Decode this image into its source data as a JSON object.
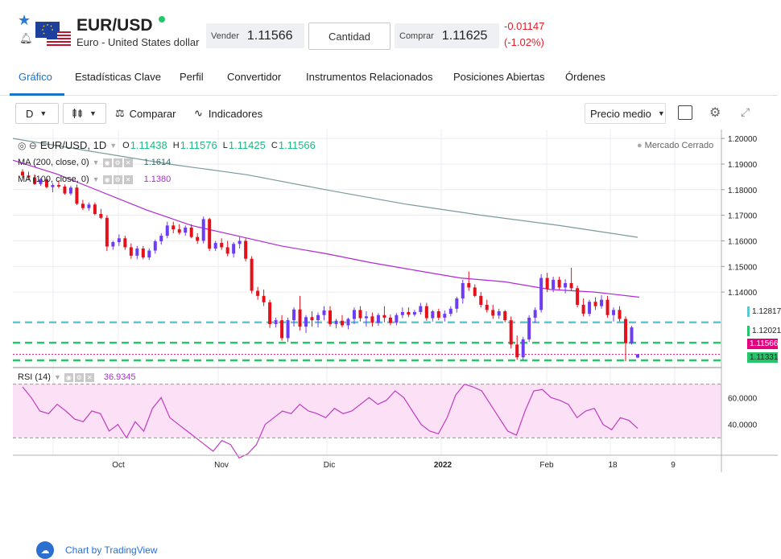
{
  "header": {
    "symbol": "EUR/USD",
    "description": "Euro - United States dollar",
    "sell_label": "Vender",
    "sell_price": "1.11566",
    "quantity_label": "Cantidad",
    "buy_label": "Comprar",
    "buy_price": "1.11625",
    "change_abs": "-0.01147",
    "change_pct": "(-1.02%)",
    "status_color": "#25c56c"
  },
  "tabs": [
    {
      "label": "Gráfico",
      "active": true
    },
    {
      "label": "Estadísticas Clave"
    },
    {
      "label": "Perfil"
    },
    {
      "label": "Convertidor"
    },
    {
      "label": "Instrumentos Relacionados"
    },
    {
      "label": "Posiciones Abiertas"
    },
    {
      "label": "Órdenes"
    }
  ],
  "toolbar": {
    "interval": "D",
    "compare_label": "Comparar",
    "indicators_label": "Indicadores",
    "price_mode": "Precio medio"
  },
  "chart": {
    "legend_symbol": "EUR/USD, 1D",
    "o_label": "O",
    "o": "1.11438",
    "h_label": "H",
    "h": "1.11576",
    "l_label": "L",
    "l": "1.11425",
    "c_label": "C",
    "c": "1.11566",
    "ma200_label": "MA (200, close, 0)",
    "ma200_value": "1.1614",
    "ma100_label": "MA (100, close, 0)",
    "ma100_value": "1.1380",
    "market_status": "Mercado Cerrado",
    "rsi_label": "RSI (14)",
    "rsi_value": "36.9345",
    "watermark": "Chart by TradingView",
    "price_badges": [
      {
        "value": "1.12817",
        "bg": "#ffffff",
        "fg": "#222222",
        "border": "#5bc8d6"
      },
      {
        "value": "1.12021",
        "bg": "#ffffff",
        "fg": "#222222",
        "border": "#25c56c"
      },
      {
        "value": "1.11566",
        "bg": "#e5007e",
        "fg": "#ffffff",
        "border": "#e5007e"
      },
      {
        "value": "1.11331",
        "bg": "#25c56c",
        "fg": "#222222",
        "border": "#25c56c"
      }
    ],
    "colors": {
      "up": "#6d3df5",
      "down": "#e5101a",
      "ma200": "#7b9b9b",
      "ma100": "#b028d6",
      "rsi": "#c03cc0",
      "rsi_band": "#f9dcf4",
      "cyan": "#5bc8d6",
      "green": "#25c56c"
    }
  },
  "chart_data": {
    "type": "candlestick",
    "ylim": [
      1.1105,
      1.2035
    ],
    "y_ticks": [
      "1.20000",
      "1.19000",
      "1.18000",
      "1.17000",
      "1.16000",
      "1.15000",
      "1.14000"
    ],
    "x_ticks": [
      "Oct",
      "Nov",
      "Dic",
      "2022",
      "Feb",
      "18",
      "9"
    ],
    "ohlc": [
      [
        1.187,
        1.188,
        1.1845,
        1.1855
      ],
      [
        1.1855,
        1.187,
        1.1838,
        1.1848
      ],
      [
        1.1848,
        1.186,
        1.1818,
        1.1822
      ],
      [
        1.1822,
        1.1845,
        1.1815,
        1.184
      ],
      [
        1.184,
        1.185,
        1.1805,
        1.181
      ],
      [
        1.181,
        1.1825,
        1.179,
        1.1818
      ],
      [
        1.1818,
        1.1835,
        1.1805,
        1.1812
      ],
      [
        1.1812,
        1.182,
        1.178,
        1.1785
      ],
      [
        1.1785,
        1.1815,
        1.1778,
        1.1808
      ],
      [
        1.1808,
        1.182,
        1.174,
        1.1745
      ],
      [
        1.1745,
        1.176,
        1.172,
        1.1728
      ],
      [
        1.1728,
        1.175,
        1.1718,
        1.1742
      ],
      [
        1.1742,
        1.175,
        1.17,
        1.1705
      ],
      [
        1.1705,
        1.1725,
        1.1685,
        1.169
      ],
      [
        1.169,
        1.17,
        1.156,
        1.1578
      ],
      [
        1.1578,
        1.16,
        1.1565,
        1.1595
      ],
      [
        1.1595,
        1.1625,
        1.158,
        1.161
      ],
      [
        1.161,
        1.162,
        1.1565,
        1.1575
      ],
      [
        1.1575,
        1.159,
        1.153,
        1.1542
      ],
      [
        1.1542,
        1.158,
        1.1528,
        1.157
      ],
      [
        1.157,
        1.158,
        1.1528,
        1.1535
      ],
      [
        1.1535,
        1.157,
        1.1525,
        1.1562
      ],
      [
        1.1562,
        1.1605,
        1.155,
        1.1598
      ],
      [
        1.1598,
        1.163,
        1.1585,
        1.162
      ],
      [
        1.162,
        1.1675,
        1.161,
        1.166
      ],
      [
        1.166,
        1.1675,
        1.163,
        1.1645
      ],
      [
        1.1645,
        1.1665,
        1.1625,
        1.1632
      ],
      [
        1.1632,
        1.166,
        1.162,
        1.1652
      ],
      [
        1.1652,
        1.1665,
        1.161,
        1.1615
      ],
      [
        1.1615,
        1.163,
        1.1588,
        1.16
      ],
      [
        1.16,
        1.1695,
        1.159,
        1.1685
      ],
      [
        1.1685,
        1.169,
        1.156,
        1.157
      ],
      [
        1.157,
        1.16,
        1.156,
        1.1592
      ],
      [
        1.1592,
        1.161,
        1.1565,
        1.1575
      ],
      [
        1.1575,
        1.16,
        1.154,
        1.155
      ],
      [
        1.155,
        1.1595,
        1.1535,
        1.1588
      ],
      [
        1.1588,
        1.1615,
        1.157,
        1.16
      ],
      [
        1.16,
        1.161,
        1.152,
        1.153
      ],
      [
        1.153,
        1.154,
        1.1395,
        1.1405
      ],
      [
        1.1405,
        1.142,
        1.137,
        1.1385
      ],
      [
        1.1385,
        1.141,
        1.1345,
        1.136
      ],
      [
        1.136,
        1.137,
        1.126,
        1.1275
      ],
      [
        1.1275,
        1.13,
        1.1262,
        1.129
      ],
      [
        1.129,
        1.131,
        1.121,
        1.122
      ],
      [
        1.122,
        1.13,
        1.1205,
        1.129
      ],
      [
        1.129,
        1.134,
        1.1265,
        1.1332
      ],
      [
        1.1332,
        1.1385,
        1.125,
        1.1265
      ],
      [
        1.1265,
        1.131,
        1.124,
        1.1302
      ],
      [
        1.1302,
        1.1325,
        1.1265,
        1.129
      ],
      [
        1.129,
        1.132,
        1.1262,
        1.131
      ],
      [
        1.131,
        1.1345,
        1.129,
        1.1328
      ],
      [
        1.1328,
        1.1345,
        1.1265,
        1.1275
      ],
      [
        1.1275,
        1.1295,
        1.1258,
        1.1288
      ],
      [
        1.1288,
        1.131,
        1.1262,
        1.127
      ],
      [
        1.127,
        1.13,
        1.1255,
        1.1295
      ],
      [
        1.1295,
        1.134,
        1.1275,
        1.133
      ],
      [
        1.133,
        1.1345,
        1.1285,
        1.1298
      ],
      [
        1.1298,
        1.1325,
        1.1265,
        1.1305
      ],
      [
        1.1305,
        1.132,
        1.1265,
        1.128
      ],
      [
        1.128,
        1.1318,
        1.1268,
        1.131
      ],
      [
        1.131,
        1.1345,
        1.1282,
        1.13
      ],
      [
        1.13,
        1.1312,
        1.127,
        1.128
      ],
      [
        1.128,
        1.1318,
        1.127,
        1.131
      ],
      [
        1.131,
        1.134,
        1.1298,
        1.1322
      ],
      [
        1.1322,
        1.134,
        1.1302,
        1.1312
      ],
      [
        1.1312,
        1.133,
        1.1305,
        1.1322
      ],
      [
        1.1322,
        1.1358,
        1.1312,
        1.1345
      ],
      [
        1.1345,
        1.1358,
        1.1288,
        1.1298
      ],
      [
        1.1298,
        1.133,
        1.1285,
        1.1325
      ],
      [
        1.1325,
        1.1335,
        1.129,
        1.13
      ],
      [
        1.13,
        1.1328,
        1.1285,
        1.1315
      ],
      [
        1.1315,
        1.1345,
        1.1305,
        1.1335
      ],
      [
        1.1335,
        1.1382,
        1.132,
        1.1375
      ],
      [
        1.1375,
        1.1448,
        1.1355,
        1.1435
      ],
      [
        1.1435,
        1.148,
        1.1405,
        1.1418
      ],
      [
        1.1418,
        1.143,
        1.138,
        1.1385
      ],
      [
        1.1385,
        1.14,
        1.134,
        1.135
      ],
      [
        1.135,
        1.137,
        1.132,
        1.133
      ],
      [
        1.133,
        1.135,
        1.1295,
        1.1308
      ],
      [
        1.1308,
        1.1335,
        1.1295,
        1.1325
      ],
      [
        1.1325,
        1.133,
        1.1282,
        1.129
      ],
      [
        1.129,
        1.1305,
        1.118,
        1.1195
      ],
      [
        1.1195,
        1.123,
        1.1135,
        1.1145
      ],
      [
        1.1145,
        1.1225,
        1.1135,
        1.1215
      ],
      [
        1.1215,
        1.131,
        1.1205,
        1.13
      ],
      [
        1.13,
        1.134,
        1.128,
        1.133
      ],
      [
        1.133,
        1.147,
        1.132,
        1.1455
      ],
      [
        1.1455,
        1.1475,
        1.14,
        1.1412
      ],
      [
        1.1412,
        1.146,
        1.14,
        1.1448
      ],
      [
        1.1448,
        1.146,
        1.141,
        1.1418
      ],
      [
        1.1418,
        1.145,
        1.1395,
        1.1435
      ],
      [
        1.1435,
        1.1495,
        1.1405,
        1.1415
      ],
      [
        1.1415,
        1.1425,
        1.134,
        1.135
      ],
      [
        1.135,
        1.1375,
        1.1305,
        1.1315
      ],
      [
        1.1315,
        1.137,
        1.1305,
        1.1362
      ],
      [
        1.1362,
        1.138,
        1.133,
        1.1345
      ],
      [
        1.1345,
        1.1388,
        1.1335,
        1.137
      ],
      [
        1.137,
        1.1385,
        1.13,
        1.131
      ],
      [
        1.131,
        1.134,
        1.1285,
        1.133
      ],
      [
        1.133,
        1.1345,
        1.1285,
        1.1295
      ],
      [
        1.1295,
        1.1305,
        1.113,
        1.12
      ],
      [
        1.12,
        1.1268,
        1.1195,
        1.1262
      ],
      [
        1.1144,
        1.1158,
        1.1142,
        1.1157
      ]
    ],
    "ma200": [
      1.2,
      1.195,
      1.19,
      1.1858,
      1.18,
      1.1745,
      1.17,
      1.166,
      1.1614
    ],
    "ma100": [
      1.1915,
      1.186,
      1.179,
      1.172,
      1.166,
      1.162,
      1.158,
      1.155,
      1.1515,
      1.1485,
      1.1455,
      1.144,
      1.141,
      1.14,
      1.138
    ],
    "hlines": [
      1.12817,
      1.12021,
      1.11331
    ],
    "rsi": [
      68,
      60,
      50,
      48,
      55,
      50,
      44,
      42,
      50,
      48,
      35,
      40,
      30,
      42,
      35,
      52,
      60,
      45,
      40,
      35,
      30,
      25,
      20,
      28,
      25,
      15,
      18,
      25,
      40,
      45,
      50,
      48,
      55,
      50,
      48,
      45,
      52,
      48,
      50,
      55,
      60,
      55,
      58,
      65,
      60,
      50,
      40,
      35,
      33,
      45,
      62,
      70,
      68,
      65,
      55,
      45,
      35,
      32,
      50,
      65,
      66,
      60,
      58,
      55,
      45,
      50,
      52,
      40,
      36,
      45,
      43,
      37
    ],
    "rsi_ticks": [
      "60.0000",
      "40.0000"
    ]
  }
}
